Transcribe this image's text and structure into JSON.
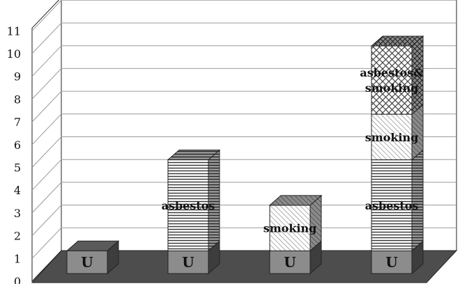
{
  "chart_data": {
    "type": "bar",
    "stacked": true,
    "three_d": true,
    "title": "",
    "xlabel": "",
    "ylabel": "",
    "ylim": [
      0,
      11
    ],
    "yticks": [
      0,
      1,
      2,
      3,
      4,
      5,
      6,
      7,
      8,
      9,
      10,
      11
    ],
    "grid": true,
    "legend": "none",
    "categories": [
      "",
      "",
      "",
      ""
    ],
    "bars": [
      {
        "segments": [
          {
            "label": "U",
            "value": 1,
            "fill": "solid",
            "color": "#8c8c8c"
          }
        ]
      },
      {
        "segments": [
          {
            "label": "U",
            "value": 1,
            "fill": "solid",
            "color": "#8c8c8c"
          },
          {
            "label": "asbestos",
            "value": 4,
            "fill": "horizontal-lines",
            "color": "#444444"
          }
        ]
      },
      {
        "segments": [
          {
            "label": "U",
            "value": 1,
            "fill": "solid",
            "color": "#8c8c8c"
          },
          {
            "label": "smoking",
            "value": 2,
            "fill": "diagonal-lines",
            "color": "#666666"
          }
        ]
      },
      {
        "segments": [
          {
            "label": "U",
            "value": 1,
            "fill": "solid",
            "color": "#8c8c8c"
          },
          {
            "label": "asbestos",
            "value": 4,
            "fill": "horizontal-lines",
            "color": "#444444"
          },
          {
            "label": "smoking",
            "value": 2,
            "fill": "diagonal-lines",
            "color": "#666666"
          },
          {
            "label": "asbestos&\nsmoking",
            "label_lines": [
              "asbestos&",
              "smoking"
            ],
            "value": 3,
            "fill": "crosshatch",
            "color": "#555555"
          }
        ]
      }
    ]
  }
}
